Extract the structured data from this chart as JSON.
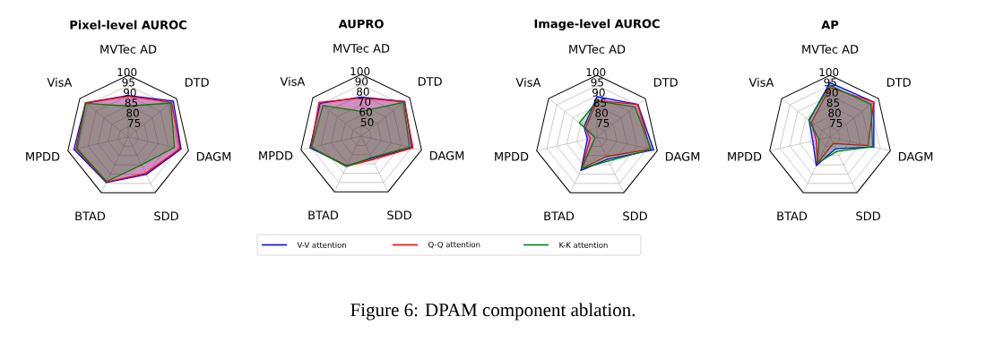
{
  "chart_data": [
    {
      "type": "radar",
      "title": "Pixel-level AUROC",
      "categories": [
        "MVTec AD",
        "DTD",
        "DAGM",
        "SDD",
        "BTAD",
        "MPDD",
        "VisA"
      ],
      "ylim": [
        70,
        100
      ],
      "yticks": [
        75,
        80,
        85,
        90,
        95,
        100
      ],
      "grid": true,
      "series": [
        {
          "color": "#0000ff",
          "values": [
            90.2,
            98,
            96.3,
            90.2,
            94.5,
            97,
            96.5
          ]
        },
        {
          "color": "#ff0000",
          "values": [
            89.8,
            97,
            95.7,
            89.6,
            94.3,
            96,
            96.5
          ]
        },
        {
          "color": "#008000",
          "values": [
            85,
            96.5,
            93,
            85,
            94,
            95.5,
            96.3
          ]
        }
      ]
    },
    {
      "type": "radar",
      "title": "AUPRO",
      "categories": [
        "MVTec AD",
        "DTD",
        "DAGM",
        "SDD",
        "BTAD",
        "MPDD",
        "VisA"
      ],
      "ylim": [
        40,
        100
      ],
      "yticks": [
        50,
        60,
        70,
        80,
        90,
        100
      ],
      "grid": true,
      "legend": "bottom",
      "annotations": [
        "Figure 6: DPAM component ablation."
      ],
      "series": [
        {
          "name": "V-V attention",
          "color": "#0000ff",
          "values": [
            78,
            94,
            90.5,
            64,
            72,
            91,
            91
          ]
        },
        {
          "name": "Q-Q attention",
          "color": "#ff0000",
          "values": [
            77,
            93.5,
            91.5,
            65.5,
            72.5,
            90,
            92.5
          ]
        },
        {
          "name": "K-K attention",
          "color": "#008000",
          "values": [
            64,
            92.5,
            88,
            63,
            73,
            89.5,
            87.5
          ]
        }
      ]
    },
    {
      "type": "radar",
      "title": "Image-level AUROC",
      "categories": [
        "MVTec AD",
        "DTD",
        "DAGM",
        "SDD",
        "BTAD",
        "MPDD",
        "VisA"
      ],
      "ylim": [
        70,
        100
      ],
      "yticks": [
        75,
        80,
        85,
        90,
        95,
        100
      ],
      "grid": true,
      "series": [
        {
          "color": "#0000ff",
          "values": [
            89.6,
            95.4,
            98.2,
            82,
            88,
            74.8,
            78
          ]
        },
        {
          "color": "#ff0000",
          "values": [
            87.7,
            95.4,
            96.5,
            80.5,
            87,
            73.4,
            77
          ]
        },
        {
          "color": "#008000",
          "values": [
            87.4,
            93.5,
            97,
            83,
            87,
            71,
            81
          ]
        }
      ]
    },
    {
      "type": "radar",
      "title": "AP",
      "categories": [
        "MVTec AD",
        "DTD",
        "DAGM",
        "SDD",
        "BTAD",
        "MPDD",
        "VisA"
      ],
      "ylim": [
        70,
        100
      ],
      "yticks": [
        75,
        80,
        85,
        90,
        95,
        100
      ],
      "grid": true,
      "series": [
        {
          "color": "#0000ff",
          "values": [
            96.4,
            97.2,
            91.8,
            76.3,
            85.4,
            78.6,
            83
          ]
        },
        {
          "color": "#ff0000",
          "values": [
            94,
            97.2,
            88.9,
            73.5,
            84.3,
            76.9,
            81.5
          ]
        },
        {
          "color": "#008000",
          "values": [
            95,
            95.5,
            91.2,
            77.8,
            84,
            75.5,
            83.3
          ]
        }
      ]
    }
  ]
}
